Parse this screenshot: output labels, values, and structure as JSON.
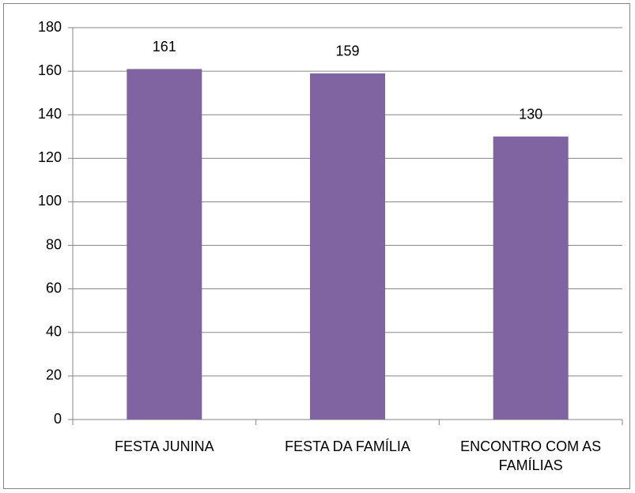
{
  "chart_data": {
    "type": "bar",
    "categories": [
      "FESTA JUNINA",
      "FESTA DA FAMÍLIA",
      "ENCONTRO COM AS FAMÍLIAS"
    ],
    "values": [
      161,
      159,
      130
    ],
    "color": "#8064a2",
    "ylim": [
      0,
      180
    ],
    "yticks": [
      0,
      20,
      40,
      60,
      80,
      100,
      120,
      140,
      160,
      180
    ],
    "grid": true
  }
}
